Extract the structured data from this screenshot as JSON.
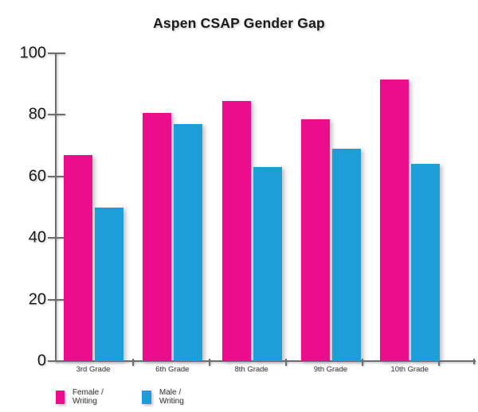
{
  "title": "Aspen CSAP Gender Gap",
  "colors": {
    "female": "#EC0D8C",
    "male": "#1E9ED9",
    "axis": "#6D6E71",
    "text": "#1A1A1A"
  },
  "chart_data": {
    "type": "bar",
    "title": "Aspen CSAP Gender Gap",
    "categories": [
      "3rd Grade",
      "6th Grade",
      "8th Grade",
      "9th Grade",
      "10th Grade"
    ],
    "series": [
      {
        "name": "Female / Writing",
        "color_key": "female",
        "values": [
          67,
          80.5,
          84.5,
          78.5,
          91.5
        ]
      },
      {
        "name": "Male / Writing",
        "color_key": "male",
        "values": [
          50,
          77,
          63,
          69,
          64
        ]
      }
    ],
    "xlabel": "",
    "ylabel": "",
    "ylim": [
      0,
      100
    ],
    "yticks": [
      0,
      20,
      40,
      60,
      80,
      100
    ],
    "grid": false,
    "legend_position": "bottom-left"
  },
  "legend": {
    "items": [
      {
        "label": "Female / Writing",
        "color_key": "female"
      },
      {
        "label": "Male / Writing",
        "color_key": "male"
      }
    ]
  }
}
